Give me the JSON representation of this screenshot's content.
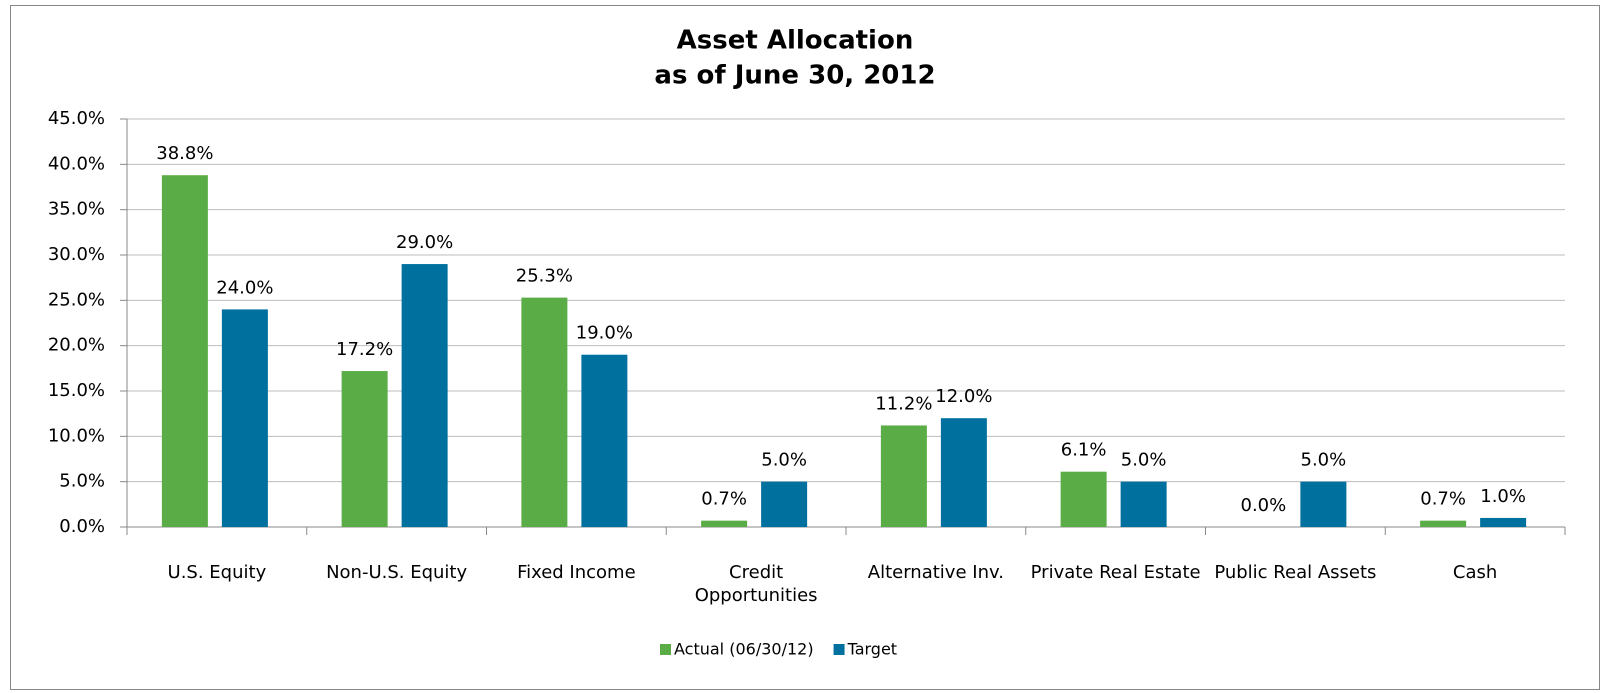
{
  "chart_data": {
    "type": "bar",
    "title": "Asset Allocation",
    "subtitle": "as of June 30, 2012",
    "categories": [
      "U.S. Equity",
      "Non-U.S. Equity",
      "Fixed Income",
      "Credit Opportunities",
      "Alternative Inv.",
      "Private Real Estate",
      "Public Real Assets",
      "Cash"
    ],
    "series": [
      {
        "name": "Actual (06/30/12)",
        "color": "#5aad46",
        "values": [
          38.8,
          17.2,
          25.3,
          0.7,
          11.2,
          6.1,
          0.0,
          0.7
        ],
        "value_labels": [
          "38.8%",
          "17.2%",
          "25.3%",
          "0.7%",
          "11.2%",
          "6.1%",
          "0.0%",
          "0.7%"
        ]
      },
      {
        "name": "Target",
        "color": "#00709e",
        "values": [
          24.0,
          29.0,
          19.0,
          5.0,
          12.0,
          5.0,
          5.0,
          1.0
        ],
        "value_labels": [
          "24.0%",
          "29.0%",
          "19.0%",
          "5.0%",
          "12.0%",
          "5.0%",
          "5.0%",
          "1.0%"
        ]
      }
    ],
    "ylim": [
      0,
      45
    ],
    "yticks": [
      {
        "value": 0,
        "label": "0.0%"
      },
      {
        "value": 5,
        "label": "5.0%"
      },
      {
        "value": 10,
        "label": "10.0%"
      },
      {
        "value": 15,
        "label": "15.0%"
      },
      {
        "value": 20,
        "label": "20.0%"
      },
      {
        "value": 25,
        "label": "25.0%"
      },
      {
        "value": 30,
        "label": "30.0%"
      },
      {
        "value": 35,
        "label": "35.0%"
      },
      {
        "value": 40,
        "label": "40.0%"
      },
      {
        "value": 45,
        "label": "45.0%"
      }
    ],
    "grid": true,
    "legend": "bottom"
  }
}
